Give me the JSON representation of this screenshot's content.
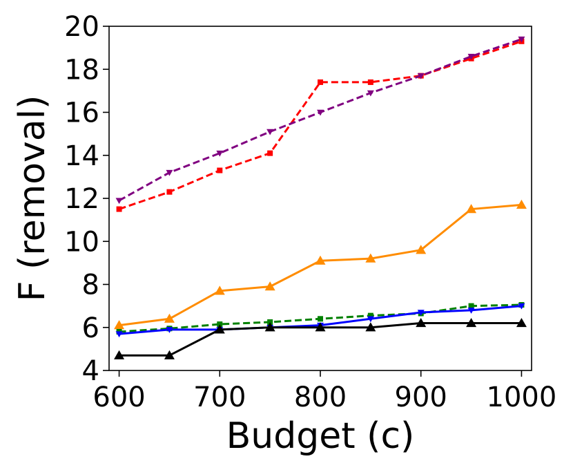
{
  "chart_data": {
    "type": "line",
    "xlabel": "Budget (c)",
    "ylabel": "F (removal)",
    "xlim": [
      590,
      1010
    ],
    "ylim": [
      4,
      20
    ],
    "xticks": [
      600,
      700,
      800,
      900,
      1000
    ],
    "yticks": [
      4,
      6,
      8,
      10,
      12,
      14,
      16,
      18,
      20
    ],
    "grid": false,
    "x": [
      600,
      650,
      700,
      750,
      800,
      850,
      900,
      950,
      1000
    ],
    "series": [
      {
        "color": "#ff0000",
        "line_style": "dashed",
        "marker": "square",
        "values": [
          11.5,
          12.3,
          13.3,
          14.1,
          17.4,
          17.4,
          17.7,
          18.5,
          19.3
        ]
      },
      {
        "color": "#800080",
        "line_style": "dashed",
        "marker": "triangle-down",
        "values": [
          11.9,
          13.2,
          14.1,
          15.1,
          16.0,
          16.9,
          17.7,
          18.6,
          19.4
        ]
      },
      {
        "color": "#ff8c00",
        "line_style": "solid",
        "marker": "triangle-up",
        "values": [
          6.1,
          6.4,
          7.7,
          7.9,
          9.1,
          9.2,
          9.6,
          11.5,
          11.7
        ]
      },
      {
        "color": "#008000",
        "line_style": "dashed",
        "marker": "square",
        "values": [
          5.8,
          5.95,
          6.15,
          6.25,
          6.4,
          6.55,
          6.65,
          7.0,
          7.05
        ]
      },
      {
        "color": "#0000ff",
        "line_style": "solid",
        "marker": "triangle-down",
        "values": [
          5.7,
          5.9,
          5.9,
          6.0,
          6.1,
          6.4,
          6.7,
          6.8,
          7.0
        ]
      },
      {
        "color": "#000000",
        "line_style": "solid",
        "marker": "triangle-up",
        "values": [
          4.7,
          4.7,
          5.9,
          6.0,
          6.0,
          6.0,
          6.2,
          6.2,
          6.2
        ]
      }
    ]
  }
}
